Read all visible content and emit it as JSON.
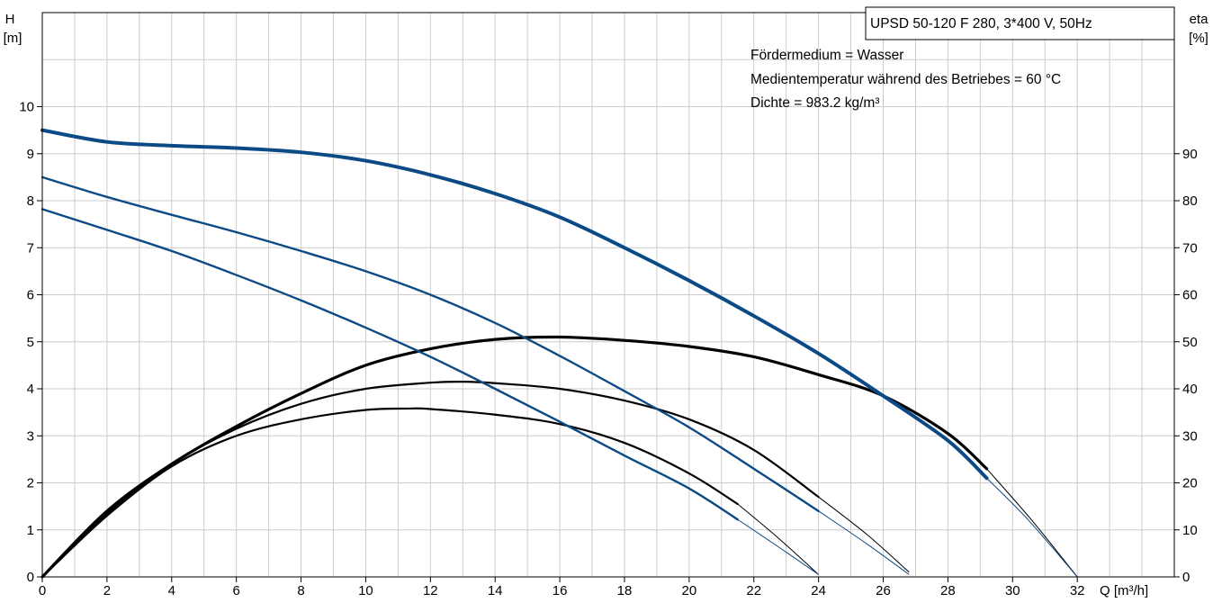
{
  "chart_data": {
    "type": "line",
    "title": "UPSD 50-120 F 280, 3*400 V, 50Hz",
    "annotations": [
      "Fördermedium = Wasser",
      "Medientemperatur während des Betriebes = 60 °C",
      "Dichte = 983.2 kg/m³"
    ],
    "xlabel": "Q [m³/h]",
    "ylabel_left": [
      "H",
      "[m]"
    ],
    "ylabel_right": [
      "eta",
      "[%]"
    ],
    "xlim": [
      0,
      35
    ],
    "ylim_left": [
      0,
      12
    ],
    "ylim_right": [
      0,
      120
    ],
    "x_ticks": [
      "0",
      "2",
      "4",
      "6",
      "8",
      "10",
      "12",
      "14",
      "16",
      "18",
      "20",
      "22",
      "24",
      "26",
      "28",
      "30",
      "32"
    ],
    "y_left_ticks": [
      "0",
      "1",
      "2",
      "3",
      "4",
      "5",
      "6",
      "7",
      "8",
      "9",
      "10"
    ],
    "y_right_ticks": [
      "0",
      "10",
      "20",
      "30",
      "40",
      "50",
      "60",
      "70",
      "80",
      "90"
    ],
    "grid": true,
    "colors": {
      "head": "#0c4a86",
      "efficiency": "#000000",
      "grid": "#cccccc"
    },
    "head_curves": [
      {
        "points": [
          [
            0,
            9.5
          ],
          [
            2,
            9.25
          ],
          [
            4,
            9.17
          ],
          [
            6,
            9.12
          ],
          [
            8,
            9.03
          ],
          [
            10,
            8.85
          ],
          [
            12,
            8.55
          ],
          [
            14,
            8.15
          ],
          [
            16,
            7.65
          ],
          [
            18,
            7.0
          ],
          [
            20,
            6.3
          ],
          [
            22,
            5.55
          ],
          [
            24,
            4.75
          ],
          [
            26,
            3.85
          ],
          [
            28,
            2.9
          ],
          [
            29.2,
            2.1
          ]
        ],
        "extension": [
          [
            29.2,
            2.1
          ],
          [
            30.5,
            1.2
          ],
          [
            32,
            0
          ]
        ]
      },
      {
        "points": [
          [
            0,
            8.5
          ],
          [
            2,
            8.08
          ],
          [
            4,
            7.7
          ],
          [
            6,
            7.33
          ],
          [
            8,
            6.93
          ],
          [
            10,
            6.5
          ],
          [
            12,
            6.0
          ],
          [
            14,
            5.4
          ],
          [
            16,
            4.7
          ],
          [
            18,
            3.95
          ],
          [
            20,
            3.18
          ],
          [
            22,
            2.3
          ],
          [
            24,
            1.4
          ]
        ],
        "extension": [
          [
            24,
            1.4
          ],
          [
            25.5,
            0.7
          ],
          [
            26.8,
            0.05
          ]
        ]
      },
      {
        "points": [
          [
            0,
            7.82
          ],
          [
            2,
            7.38
          ],
          [
            4,
            6.93
          ],
          [
            6,
            6.42
          ],
          [
            8,
            5.88
          ],
          [
            10,
            5.3
          ],
          [
            12,
            4.68
          ],
          [
            14,
            4.0
          ],
          [
            16,
            3.3
          ],
          [
            18,
            2.58
          ],
          [
            20,
            1.88
          ],
          [
            21.5,
            1.22
          ]
        ],
        "extension": [
          [
            21.5,
            1.22
          ],
          [
            22.8,
            0.62
          ],
          [
            24,
            0.05
          ]
        ]
      }
    ],
    "efficiency_curves": [
      {
        "points": [
          [
            0,
            0
          ],
          [
            2,
            14
          ],
          [
            4,
            24
          ],
          [
            6,
            32
          ],
          [
            8,
            39
          ],
          [
            10,
            45
          ],
          [
            12,
            48.5
          ],
          [
            14,
            50.5
          ],
          [
            16,
            51
          ],
          [
            18,
            50.3
          ],
          [
            20,
            49
          ],
          [
            22,
            46.8
          ],
          [
            24,
            43
          ],
          [
            26,
            38.5
          ],
          [
            28,
            30.5
          ],
          [
            29.2,
            23
          ]
        ],
        "extension": [
          [
            29.2,
            23
          ],
          [
            30.6,
            12
          ],
          [
            32,
            0
          ]
        ]
      },
      {
        "points": [
          [
            0,
            0
          ],
          [
            2,
            13.5
          ],
          [
            4,
            24
          ],
          [
            6,
            31.5
          ],
          [
            8,
            36.8
          ],
          [
            10,
            40
          ],
          [
            12,
            41.3
          ],
          [
            13,
            41.5
          ],
          [
            14,
            41.2
          ],
          [
            16,
            40
          ],
          [
            18,
            37.5
          ],
          [
            20,
            33.5
          ],
          [
            22,
            27
          ],
          [
            24,
            17
          ]
        ],
        "extension": [
          [
            24,
            17
          ],
          [
            25.5,
            9
          ],
          [
            26.8,
            1
          ]
        ]
      },
      {
        "points": [
          [
            0,
            0
          ],
          [
            2,
            13
          ],
          [
            4,
            23.5
          ],
          [
            6,
            30
          ],
          [
            8,
            33.5
          ],
          [
            10,
            35.5
          ],
          [
            11.3,
            35.8
          ],
          [
            12,
            35.7
          ],
          [
            14,
            34.5
          ],
          [
            16,
            32.5
          ],
          [
            18,
            28.5
          ],
          [
            20,
            22
          ],
          [
            21.5,
            15.5
          ]
        ],
        "extension": [
          [
            21.5,
            15.5
          ],
          [
            22.8,
            8
          ],
          [
            24,
            0.5
          ]
        ]
      }
    ]
  }
}
